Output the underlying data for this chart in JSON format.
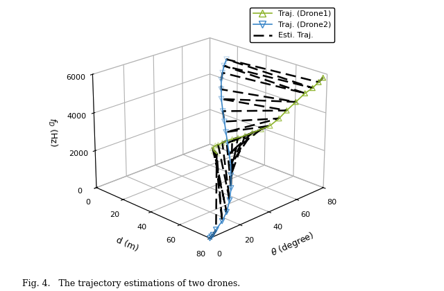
{
  "caption": "Fig. 4.   The trajectory estimations of two drones.",
  "xlabel": "$\\theta$ (degree)",
  "ylabel": "d (m)",
  "zlabel": "$f_D$ (Hz)",
  "xlim": [
    0,
    80
  ],
  "ylim": [
    0,
    80
  ],
  "zlim": [
    0,
    6000
  ],
  "xticks": [
    0,
    20,
    40,
    60,
    80
  ],
  "yticks": [
    0,
    20,
    40,
    60,
    80
  ],
  "zticks": [
    0,
    2000,
    4000,
    6000
  ],
  "drone1_color": "#8db32a",
  "drone2_color": "#3a86c8",
  "esti_color": "#000000",
  "drone1_theta": [
    65,
    64,
    63,
    62,
    62,
    62,
    62,
    62,
    62,
    62,
    63,
    63,
    64,
    65,
    66,
    67,
    69,
    71,
    73,
    75,
    77
  ],
  "drone1_d": [
    20,
    20,
    20,
    20,
    22,
    24,
    27,
    30,
    34,
    38,
    42,
    47,
    52,
    57,
    62,
    66,
    70,
    74,
    77,
    79,
    80
  ],
  "drone1_fD": [
    500,
    600,
    700,
    900,
    1100,
    1200,
    1400,
    1600,
    1800,
    2000,
    2200,
    2500,
    2800,
    3100,
    3600,
    4100,
    4600,
    5100,
    5400,
    5700,
    5900
  ],
  "drone2_theta": [
    72,
    68,
    64,
    60,
    56,
    52,
    48,
    44,
    40,
    36,
    32,
    28,
    24,
    20,
    16,
    12,
    8,
    4,
    2,
    1,
    0
  ],
  "drone2_d": [
    20,
    22,
    25,
    28,
    32,
    36,
    41,
    46,
    51,
    56,
    61,
    66,
    70,
    74,
    77,
    79,
    80,
    80,
    80,
    80,
    80
  ],
  "drone2_fD": [
    5500,
    5300,
    5100,
    4900,
    4600,
    4300,
    3900,
    3600,
    3300,
    3000,
    2700,
    2400,
    2100,
    1700,
    1300,
    900,
    600,
    300,
    100,
    50,
    0
  ],
  "legend_labels": [
    "Traj. (Drone1)",
    "Traj. (Drone2)",
    "Esti. Traj."
  ],
  "elev": 22,
  "azim": 45
}
